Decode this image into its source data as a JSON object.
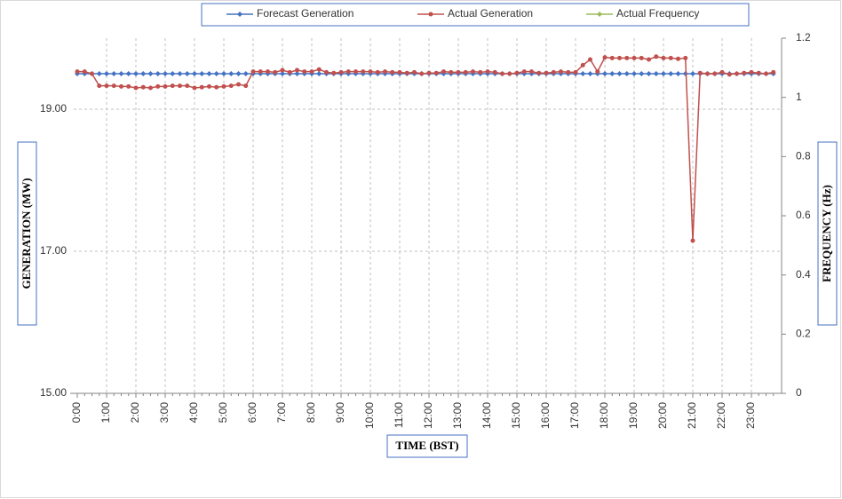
{
  "chart_data": {
    "type": "line",
    "y_label": "GENERATION (MW)",
    "y2_label": "FREQUENCY (Hz)",
    "x_label": "TIME (BST)",
    "categories": [
      "0:00",
      null,
      null,
      null,
      "1:00",
      null,
      null,
      null,
      "2:00",
      null,
      null,
      null,
      "3:00",
      null,
      null,
      null,
      "4:00",
      null,
      null,
      null,
      "5:00",
      null,
      null,
      null,
      "6:00",
      null,
      null,
      null,
      "7:00",
      null,
      null,
      null,
      "8:00",
      null,
      null,
      null,
      "9:00",
      null,
      null,
      null,
      "10:00",
      null,
      null,
      null,
      "11:00",
      null,
      null,
      null,
      "12:00",
      null,
      null,
      null,
      "13:00",
      null,
      null,
      null,
      "14:00",
      null,
      null,
      null,
      "15:00",
      null,
      null,
      null,
      "16:00",
      null,
      null,
      null,
      "17:00",
      null,
      null,
      null,
      "18:00",
      null,
      null,
      null,
      "19:00",
      null,
      null,
      null,
      "20:00",
      null,
      null,
      null,
      "21:00",
      null,
      null,
      null,
      "22:00",
      null,
      null,
      null,
      "23:00",
      null,
      null,
      null
    ],
    "ylim": [
      15,
      20
    ],
    "yticks": [
      {
        "value": 15,
        "label": "15.00"
      },
      {
        "value": 17,
        "label": "17.00"
      },
      {
        "value": 19,
        "label": "19.00"
      }
    ],
    "y2lim": [
      0,
      1.2
    ],
    "y2ticks": [
      0,
      0.2,
      0.4,
      0.6,
      0.8,
      1,
      1.2
    ],
    "grid": true,
    "series": [
      {
        "name": "Forecast Generation",
        "color": "#4472c4",
        "marker": "diamond",
        "values": [
          19.5,
          19.5,
          19.5,
          19.5,
          19.5,
          19.5,
          19.5,
          19.5,
          19.5,
          19.5,
          19.5,
          19.5,
          19.5,
          19.5,
          19.5,
          19.5,
          19.5,
          19.5,
          19.5,
          19.5,
          19.5,
          19.5,
          19.5,
          19.5,
          19.5,
          19.5,
          19.5,
          19.5,
          19.5,
          19.5,
          19.5,
          19.5,
          19.5,
          19.5,
          19.5,
          19.5,
          19.5,
          19.5,
          19.5,
          19.5,
          19.5,
          19.5,
          19.5,
          19.5,
          19.5,
          19.5,
          19.5,
          19.5,
          19.5,
          19.5,
          19.5,
          19.5,
          19.5,
          19.5,
          19.5,
          19.5,
          19.5,
          19.5,
          19.5,
          19.5,
          19.5,
          19.5,
          19.5,
          19.5,
          19.5,
          19.5,
          19.5,
          19.5,
          19.5,
          19.5,
          19.5,
          19.5,
          19.5,
          19.5,
          19.5,
          19.5,
          19.5,
          19.5,
          19.5,
          19.5,
          19.5,
          19.5,
          19.5,
          19.5,
          19.5,
          19.5,
          19.5,
          19.5,
          19.5,
          19.5,
          19.5,
          19.5,
          19.5,
          19.5,
          19.5,
          19.5
        ]
      },
      {
        "name": "Actual Generation",
        "color": "#c0504d",
        "marker": "circle",
        "values": [
          19.53,
          19.53,
          19.5,
          19.33,
          19.33,
          19.33,
          19.32,
          19.32,
          19.3,
          19.31,
          19.3,
          19.32,
          19.32,
          19.33,
          19.33,
          19.33,
          19.3,
          19.31,
          19.32,
          19.31,
          19.32,
          19.33,
          19.35,
          19.33,
          19.53,
          19.53,
          19.53,
          19.52,
          19.55,
          19.52,
          19.55,
          19.53,
          19.53,
          19.56,
          19.52,
          19.51,
          19.52,
          19.53,
          19.53,
          19.53,
          19.53,
          19.52,
          19.53,
          19.52,
          19.52,
          19.51,
          19.52,
          19.5,
          19.51,
          19.51,
          19.53,
          19.52,
          19.52,
          19.52,
          19.53,
          19.52,
          19.53,
          19.52,
          19.5,
          19.5,
          19.51,
          19.53,
          19.53,
          19.51,
          19.51,
          19.52,
          19.53,
          19.52,
          19.52,
          19.62,
          19.7,
          19.53,
          19.73,
          19.72,
          19.72,
          19.72,
          19.72,
          19.72,
          19.7,
          19.74,
          19.72,
          19.72,
          19.71,
          19.72,
          17.15,
          19.51,
          19.5,
          19.5,
          19.52,
          19.49,
          19.5,
          19.51,
          19.52,
          19.51,
          19.5,
          19.52
        ]
      },
      {
        "name": "Actual Frequency",
        "color": "#9bbb59",
        "marker": "diamond",
        "axis": "y2",
        "values": [
          null,
          null,
          null,
          null,
          null,
          null,
          null,
          null,
          null,
          null,
          null,
          null,
          null,
          null,
          null,
          null,
          null,
          null,
          null,
          null,
          null,
          null,
          null,
          null,
          null,
          null,
          null,
          null,
          null,
          null,
          null,
          null,
          null,
          null,
          null,
          null,
          null,
          null,
          null,
          null,
          null,
          null,
          null,
          null,
          null,
          null,
          null,
          null,
          null,
          null,
          null,
          null,
          null,
          null,
          null,
          null,
          null,
          null,
          null,
          null,
          null,
          null,
          null,
          null,
          null,
          null,
          null,
          null,
          null,
          null,
          null,
          null,
          null,
          null,
          null,
          null,
          null,
          null,
          null,
          null,
          null,
          null,
          null,
          null,
          null,
          null,
          null,
          null,
          null,
          null,
          null,
          null,
          null,
          null,
          null,
          null
        ]
      }
    ]
  }
}
